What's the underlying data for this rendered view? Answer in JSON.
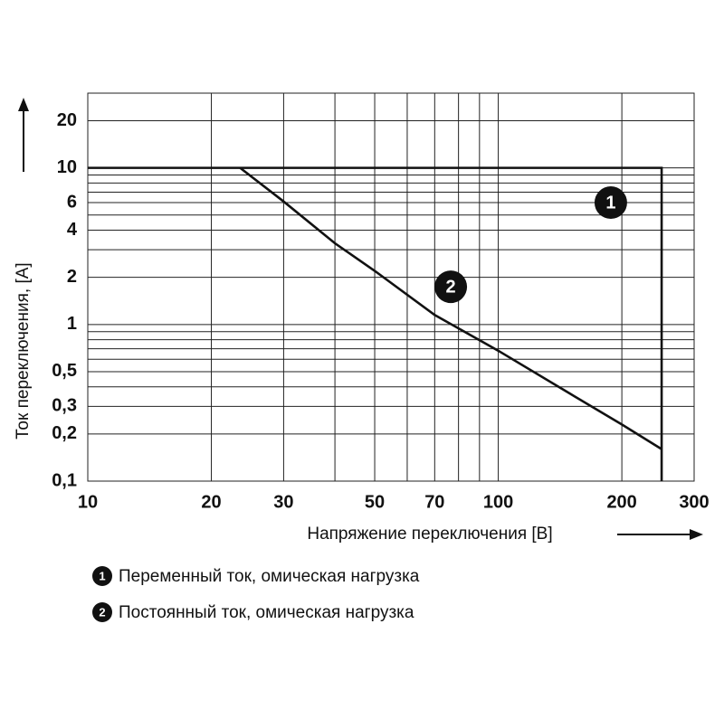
{
  "chart_data": {
    "type": "line",
    "xlabel": "Напряжение переключения [В]",
    "ylabel": "Ток переключения, [A]",
    "xscale": "log",
    "yscale": "log",
    "xlim": [
      10,
      300
    ],
    "ylim": [
      0.1,
      30
    ],
    "xticks": [
      10,
      20,
      30,
      50,
      70,
      100,
      200,
      300
    ],
    "xgrid_extra": [
      40,
      60,
      80,
      90
    ],
    "yticks": [
      {
        "value": 0.1,
        "label": "0,1"
      },
      {
        "value": 0.2,
        "label": "0,2"
      },
      {
        "value": 0.3,
        "label": "0,3"
      },
      {
        "value": 0.5,
        "label": "0,5"
      },
      1,
      2,
      4,
      6,
      10,
      20
    ],
    "ygrid_extra": [
      0.4,
      0.6,
      0.7,
      0.8,
      0.9,
      3,
      5,
      7,
      8,
      9
    ],
    "grid": true,
    "series": [
      {
        "name": "Переменный ток, омическая нагрузка",
        "marker": "1",
        "color": "#111111",
        "x": [
          10,
          250,
          250
        ],
        "values": [
          10,
          10,
          0.1
        ],
        "marker_at": [
          188,
          6
        ]
      },
      {
        "name": "Постоянный ток, омическая нагрузка",
        "marker": "2",
        "color": "#111111",
        "x": [
          23.5,
          30,
          40,
          50,
          70,
          100,
          150,
          200,
          250
        ],
        "values": [
          10,
          6.1,
          3.3,
          2.2,
          1.15,
          0.68,
          0.36,
          0.23,
          0.16
        ],
        "marker_at": [
          76.6,
          1.74
        ]
      }
    ]
  }
}
